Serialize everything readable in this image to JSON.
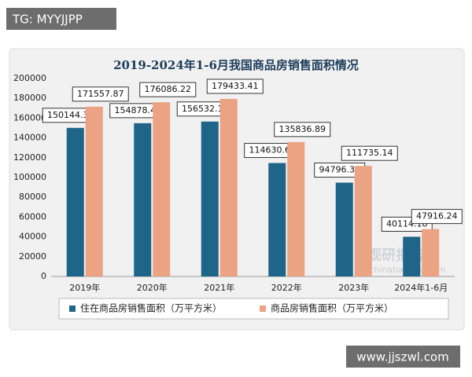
{
  "overlay": {
    "tag": "TG: MYYJJPP",
    "site": "www.jjszwl.com"
  },
  "chart_data": {
    "type": "bar",
    "title": "2019-2024年1-6月我国商品房销售面积情况",
    "categories": [
      "2019年",
      "2020年",
      "2021年",
      "2022年",
      "2023年",
      "2024年1-6月"
    ],
    "series": [
      {
        "name": "住在商品房销售面积（万平方米）",
        "color": "#1f6489",
        "values": [
          150144.32,
          154878.47,
          156532.17,
          114630.65,
          94796.35,
          40114.18
        ]
      },
      {
        "name": "商品房销售面积（万平方米）",
        "color": "#eba384",
        "values": [
          171557.87,
          176086.22,
          179433.41,
          135836.89,
          111735.14,
          47916.24
        ]
      }
    ],
    "ylim": [
      0,
      200000
    ],
    "yticks": [
      0,
      20000,
      40000,
      60000,
      80000,
      100000,
      120000,
      140000,
      160000,
      180000,
      200000
    ],
    "grid": false,
    "legend": "bottom",
    "watermark": [
      "观研报告网",
      "chinabaogao.com"
    ]
  }
}
